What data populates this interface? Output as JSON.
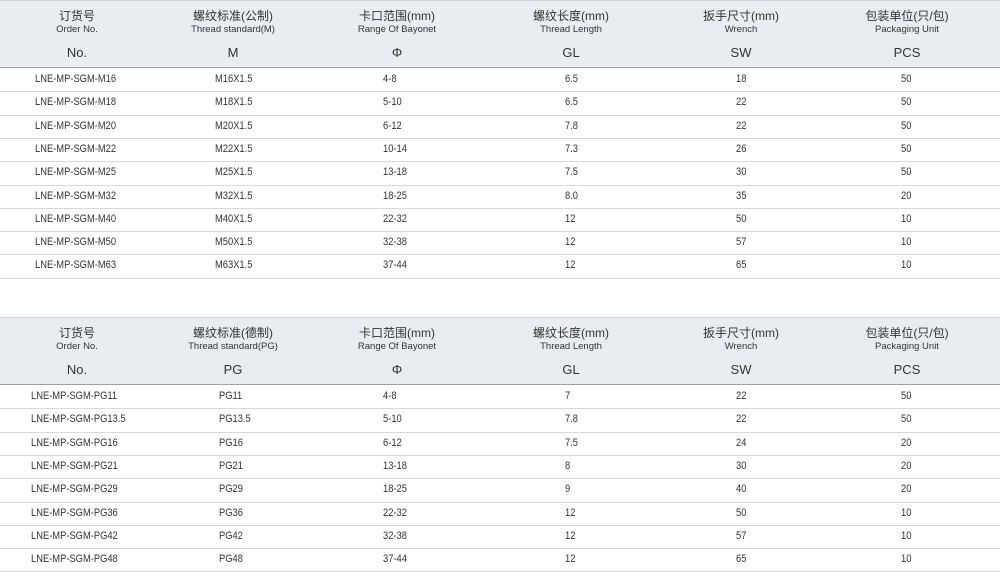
{
  "tables": [
    {
      "headers": [
        {
          "zh": "订货号",
          "en": "Order No.",
          "sym": "No."
        },
        {
          "zh": "螺纹标准(公制)",
          "en": "Thread standard(M)",
          "sym": "M"
        },
        {
          "zh": "卡口范围(mm)",
          "en": "Range Of Bayonet",
          "sym": "Φ"
        },
        {
          "zh": "螺纹长度(mm)",
          "en": "Thread Length",
          "sym": "GL"
        },
        {
          "zh": "扳手尺寸(mm)",
          "en": "Wrench",
          "sym": "SW"
        },
        {
          "zh": "包装单位(只/包)",
          "en": "Packaging Unit",
          "sym": "PCS"
        }
      ],
      "rows": [
        [
          "LNE-MP-SGM-M16",
          "M16X1.5",
          "4-8",
          "6.5",
          "18",
          "50"
        ],
        [
          "LNE-MP-SGM-M18",
          "M18X1.5",
          "5-10",
          "6.5",
          "22",
          "50"
        ],
        [
          "LNE-MP-SGM-M20",
          "M20X1.5",
          "6-12",
          "7.8",
          "22",
          "50"
        ],
        [
          "LNE-MP-SGM-M22",
          "M22X1.5",
          "10-14",
          "7.3",
          "26",
          "50"
        ],
        [
          "LNE-MP-SGM-M25",
          "M25X1.5",
          "13-18",
          "7.5",
          "30",
          "50"
        ],
        [
          "LNE-MP-SGM-M32",
          "M32X1.5",
          "18-25",
          "8.0",
          "35",
          "20"
        ],
        [
          "LNE-MP-SGM-M40",
          "M40X1.5",
          "22-32",
          "12",
          "50",
          "10"
        ],
        [
          "LNE-MP-SGM-M50",
          "M50X1.5",
          "32-38",
          "12",
          "57",
          "10"
        ],
        [
          "LNE-MP-SGM-M63",
          "M63X1.5",
          "37-44",
          "12",
          "65",
          "10"
        ]
      ]
    },
    {
      "headers": [
        {
          "zh": "订货号",
          "en": "Order No.",
          "sym": "No."
        },
        {
          "zh": "螺纹标准(德制)",
          "en": "Thread standard(PG)",
          "sym": "PG"
        },
        {
          "zh": "卡口范围(mm)",
          "en": "Range Of Bayonet",
          "sym": "Φ"
        },
        {
          "zh": "螺纹长度(mm)",
          "en": "Thread Length",
          "sym": "GL"
        },
        {
          "zh": "扳手尺寸(mm)",
          "en": "Wrench",
          "sym": "SW"
        },
        {
          "zh": "包装单位(只/包)",
          "en": "Packaging Unit",
          "sym": "PCS"
        }
      ],
      "rows": [
        [
          "LNE-MP-SGM-PG11",
          "PG11",
          "4-8",
          "7",
          "22",
          "50"
        ],
        [
          "LNE-MP-SGM-PG13.5",
          "PG13.5",
          "5-10",
          "7.8",
          "22",
          "50"
        ],
        [
          "LNE-MP-SGM-PG16",
          "PG16",
          "6-12",
          "7.5",
          "24",
          "20"
        ],
        [
          "LNE-MP-SGM-PG21",
          "PG21",
          "13-18",
          "8",
          "30",
          "20"
        ],
        [
          "LNE-MP-SGM-PG29",
          "PG29",
          "18-25",
          "9",
          "40",
          "20"
        ],
        [
          "LNE-MP-SGM-PG36",
          "PG36",
          "22-32",
          "12",
          "50",
          "10"
        ],
        [
          "LNE-MP-SGM-PG42",
          "PG42",
          "32-38",
          "12",
          "57",
          "10"
        ],
        [
          "LNE-MP-SGM-PG48",
          "PG48",
          "37-44",
          "12",
          "65",
          "10"
        ]
      ]
    }
  ]
}
